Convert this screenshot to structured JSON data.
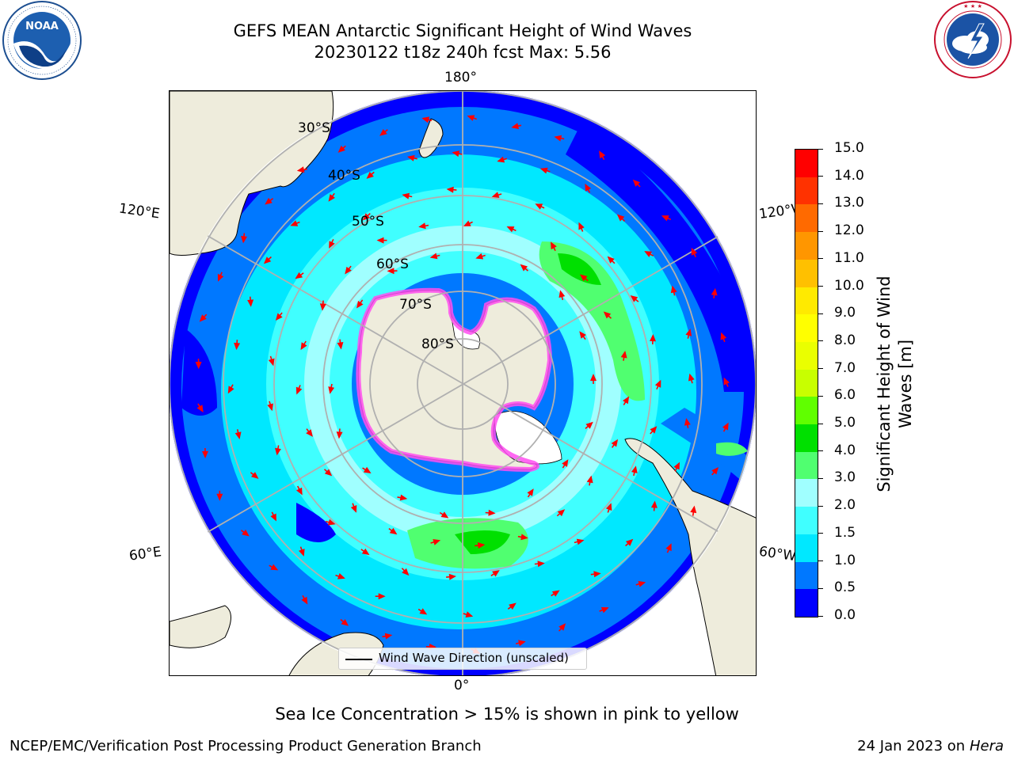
{
  "header": {
    "title_line1": "GEFS MEAN Antarctic Significant Height of Wind Waves",
    "title_line2": "20230122 t18z 240h fcst   Max: 5.56"
  },
  "logos": {
    "left": {
      "name": "NOAA",
      "text": "NOAA",
      "ring_text": "NATIONAL OCEANIC AND ATMOSPHERIC ADMINISTRATION · U.S. DEPARTMENT OF COMMERCE"
    },
    "right": {
      "name": "National Weather Service",
      "ring_text": "NATIONAL WEATHER SERVICE"
    }
  },
  "map": {
    "longitude_labels": {
      "top": "180°",
      "bottom": "0°",
      "left_upper": "120°E",
      "left_lower": "60°E",
      "right_upper": "120°W",
      "right_lower": "60°W"
    },
    "latitude_labels": [
      "30°S",
      "40°S",
      "50°S",
      "60°S",
      "70°S",
      "80°S"
    ],
    "legend_label": "Wind Wave Direction (unscaled)",
    "colors": {
      "land": "#eeecdc",
      "grid": "#b0b0b0",
      "arrow": "#ff0000",
      "ice_edge": "#ff4df0"
    }
  },
  "colorbar": {
    "title_line1": "Significant Height of Wind",
    "title_line2": "Waves [m]",
    "tick_labels": [
      "0.0",
      "0.5",
      "1.0",
      "1.5",
      "2.0",
      "3.0",
      "4.0",
      "5.0",
      "6.0",
      "7.0",
      "8.0",
      "9.0",
      "10.0",
      "11.0",
      "12.0",
      "13.0",
      "14.0",
      "15.0"
    ],
    "segment_colors": [
      "#0000ff",
      "#0078ff",
      "#00e8ff",
      "#40ffff",
      "#a0ffff",
      "#50ff70",
      "#00e000",
      "#60ff00",
      "#c8ff00",
      "#eaff00",
      "#ffff00",
      "#ffea00",
      "#ffc000",
      "#ff9600",
      "#ff6a00",
      "#ff3200",
      "#ff0000"
    ]
  },
  "footer": {
    "note": "Sea Ice Concentration > 15% is shown in pink to yellow",
    "left": "NCEP/EMC/Verification Post Processing Product Generation Branch",
    "right_date": "24 Jan 2023 on ",
    "right_host": "Hera"
  }
}
